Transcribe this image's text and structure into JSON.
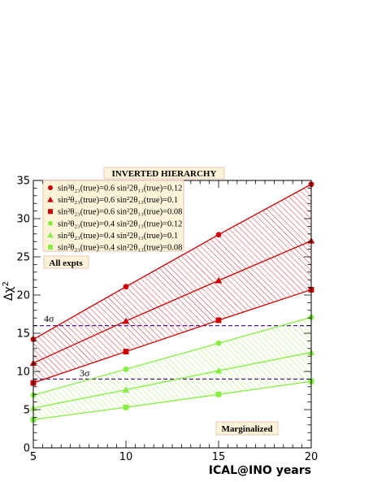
{
  "chart_data": {
    "type": "line",
    "title": "INVERTED HIERARCHY",
    "xlabel": "ICAL@INO years",
    "ylabel": "Δχ²",
    "xlim": [
      5,
      20
    ],
    "ylim": [
      0,
      35
    ],
    "x": [
      5,
      10,
      15,
      20
    ],
    "xticks": [
      "5",
      "10",
      "15",
      "20"
    ],
    "yticks": [
      "0",
      "5",
      "10",
      "15",
      "20",
      "25",
      "30",
      "35"
    ],
    "series": [
      {
        "name": "sin²θ₂₃(true)=0.6   sin²2θ₁₃(true)=0.12",
        "marker": "circle",
        "color": "#cc0000",
        "values": [
          14.2,
          21.1,
          27.9,
          34.5
        ]
      },
      {
        "name": "sin²θ₂₃(true)=0.6   sin²2θ₁₃(true)=0.1",
        "marker": "triangle",
        "color": "#cc0000",
        "values": [
          11.1,
          16.6,
          21.9,
          27.1
        ]
      },
      {
        "name": "sin²θ₂₃(true)=0.6   sin²2θ₁₃(true)=0.08",
        "marker": "square",
        "color": "#cc0000",
        "values": [
          8.5,
          12.6,
          16.7,
          20.7
        ]
      },
      {
        "name": "sin²θ₂₃(true)=0.4   sin²2θ₁₃(true)=0.12",
        "marker": "circle",
        "color": "#88ee44",
        "values": [
          6.9,
          10.3,
          13.7,
          17.1
        ]
      },
      {
        "name": "sin²θ₂₃(true)=0.4   sin²2θ₁₃(true)=0.1",
        "marker": "triangle",
        "color": "#88ee44",
        "values": [
          5.2,
          7.6,
          10.1,
          12.5
        ]
      },
      {
        "name": "sin²θ₂₃(true)=0.4   sin²2θ₁₃(true)=0.08",
        "marker": "square",
        "color": "#88ee44",
        "values": [
          3.7,
          5.3,
          7.0,
          8.7
        ]
      }
    ],
    "reference_lines": [
      {
        "label": "3σ",
        "y": 9.0,
        "color": "#551a8b"
      },
      {
        "label": "4σ",
        "y": 16.0,
        "color": "#551a8b"
      }
    ],
    "annotations": [
      "All expts",
      "Marginalized"
    ],
    "legend_position": "top-left",
    "grid": false
  }
}
